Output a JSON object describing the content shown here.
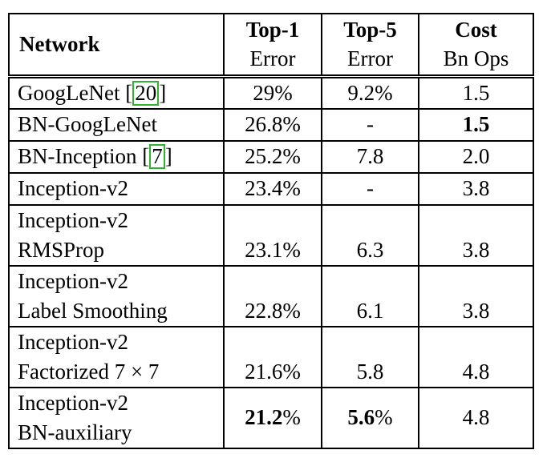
{
  "table": {
    "columns": [
      {
        "id": "network",
        "line1": "Network",
        "line2": ""
      },
      {
        "id": "top1",
        "line1": "Top-1",
        "line2": "Error"
      },
      {
        "id": "top5",
        "line1": "Top-5",
        "line2": "Error"
      },
      {
        "id": "cost",
        "line1": "Cost",
        "line2": "Bn Ops"
      }
    ],
    "rows": [
      {
        "lines": [
          {
            "text": "GoogLeNet",
            "cite": "20"
          }
        ],
        "top1": "29%",
        "top5": "9.2%",
        "cost": "1.5"
      },
      {
        "lines": [
          {
            "text": "BN-GoogLeNet"
          }
        ],
        "top1": "26.8%",
        "top5": "-",
        "cost": {
          "text": "1.5",
          "suffix": "",
          "bold": true
        }
      },
      {
        "lines": [
          {
            "text": "BN-Inception",
            "cite": "7"
          }
        ],
        "top1": "25.2%",
        "top5": "7.8",
        "cost": "2.0"
      },
      {
        "lines": [
          {
            "text": "Inception-v2"
          }
        ],
        "top1": "23.4%",
        "top5": "-",
        "cost": "3.8"
      },
      {
        "lines": [
          {
            "text": "Inception-v2"
          },
          {
            "text": "RMSProp"
          }
        ],
        "top1": "23.1%",
        "top5": "6.3",
        "cost": "3.8"
      },
      {
        "lines": [
          {
            "text": "Inception-v2"
          },
          {
            "text": "Label Smoothing"
          }
        ],
        "top1": "22.8%",
        "top5": "6.1",
        "cost": "3.8"
      },
      {
        "lines": [
          {
            "text": "Inception-v2"
          },
          {
            "text": "Factorized 7 × 7"
          }
        ],
        "top1": "21.6%",
        "top5": "5.8",
        "cost": "4.8"
      },
      {
        "lines": [
          {
            "text": "Inception-v2"
          },
          {
            "text": "BN-auxiliary"
          }
        ],
        "center_values": true,
        "top1": {
          "text": "21.2",
          "suffix": "%",
          "bold": true
        },
        "top5": {
          "text": "5.6",
          "suffix": "%",
          "bold": true
        },
        "cost": "4.8"
      }
    ]
  },
  "chart_data": {
    "type": "table",
    "columns": [
      "Network",
      "Top-1 Error",
      "Top-5 Error",
      "Cost Bn Ops"
    ],
    "rows": [
      [
        "GoogLeNet [20]",
        "29%",
        "9.2%",
        "1.5"
      ],
      [
        "BN-GoogLeNet",
        "26.8%",
        "-",
        "1.5"
      ],
      [
        "BN-Inception [7]",
        "25.2%",
        "7.8",
        "2.0"
      ],
      [
        "Inception-v2",
        "23.4%",
        "-",
        "3.8"
      ],
      [
        "Inception-v2 RMSProp",
        "23.1%",
        "6.3",
        "3.8"
      ],
      [
        "Inception-v2 Label Smoothing",
        "22.8%",
        "6.1",
        "3.8"
      ],
      [
        "Inception-v2 Factorized 7 × 7",
        "21.6%",
        "5.8",
        "4.8"
      ],
      [
        "Inception-v2 BN-auxiliary",
        "21.2%",
        "5.6%",
        "4.8"
      ]
    ]
  }
}
